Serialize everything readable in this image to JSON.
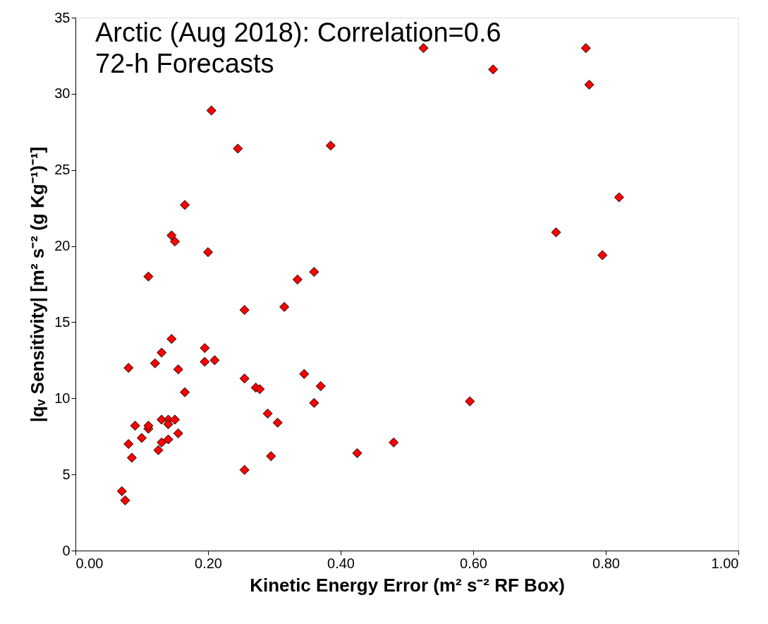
{
  "chart_data": {
    "type": "scatter",
    "title": "Arctic (Aug 2018):  Correlation=0.6",
    "subtitle": "72-h Forecasts",
    "xlabel": "Kinetic Energy Error (m² s⁻² RF Box)",
    "ylabel": "|qᵥ Sensitivity| [m² s⁻² (g Kg⁻¹)⁻¹]",
    "xlim": [
      0,
      1
    ],
    "ylim": [
      0,
      35
    ],
    "xticks": [
      {
        "value": 0,
        "label": "0.00"
      },
      {
        "value": 0.2,
        "label": "0.20"
      },
      {
        "value": 0.4,
        "label": "0.40"
      },
      {
        "value": 0.6,
        "label": "0.60"
      },
      {
        "value": 0.8,
        "label": "0.80"
      },
      {
        "value": 1,
        "label": "1.00"
      }
    ],
    "yticks": [
      0,
      5,
      10,
      15,
      20,
      25,
      30,
      35
    ],
    "grid": false,
    "marker": "diamond",
    "series": [
      {
        "color": "#ff0000",
        "x": [
          0.07,
          0.075,
          0.08,
          0.085,
          0.08,
          0.09,
          0.1,
          0.11,
          0.11,
          0.11,
          0.12,
          0.125,
          0.13,
          0.13,
          0.13,
          0.14,
          0.14,
          0.14,
          0.145,
          0.145,
          0.15,
          0.15,
          0.155,
          0.155,
          0.165,
          0.165,
          0.195,
          0.195,
          0.2,
          0.205,
          0.21,
          0.245,
          0.255,
          0.255,
          0.255,
          0.272,
          0.278,
          0.29,
          0.295,
          0.305,
          0.315,
          0.335,
          0.345,
          0.36,
          0.36,
          0.37,
          0.385,
          0.425,
          0.48,
          0.525,
          0.595,
          0.63,
          0.725,
          0.77,
          0.775,
          0.795,
          0.82
        ],
        "values": [
          3.9,
          3.3,
          7.0,
          6.1,
          12.0,
          8.2,
          7.4,
          8.0,
          8.2,
          18.0,
          12.3,
          6.6,
          13.0,
          7.1,
          8.6,
          8.6,
          7.3,
          8.3,
          13.9,
          20.7,
          20.3,
          8.6,
          11.9,
          7.7,
          10.4,
          22.7,
          13.3,
          12.4,
          19.6,
          28.9,
          12.5,
          26.4,
          11.3,
          5.3,
          15.8,
          10.7,
          10.6,
          9.0,
          6.2,
          8.4,
          16.0,
          17.8,
          11.6,
          18.3,
          9.7,
          10.8,
          26.6,
          6.4,
          7.1,
          33.0,
          9.8,
          31.6,
          20.9,
          33.0,
          30.6,
          19.4,
          23.2
        ]
      }
    ]
  }
}
